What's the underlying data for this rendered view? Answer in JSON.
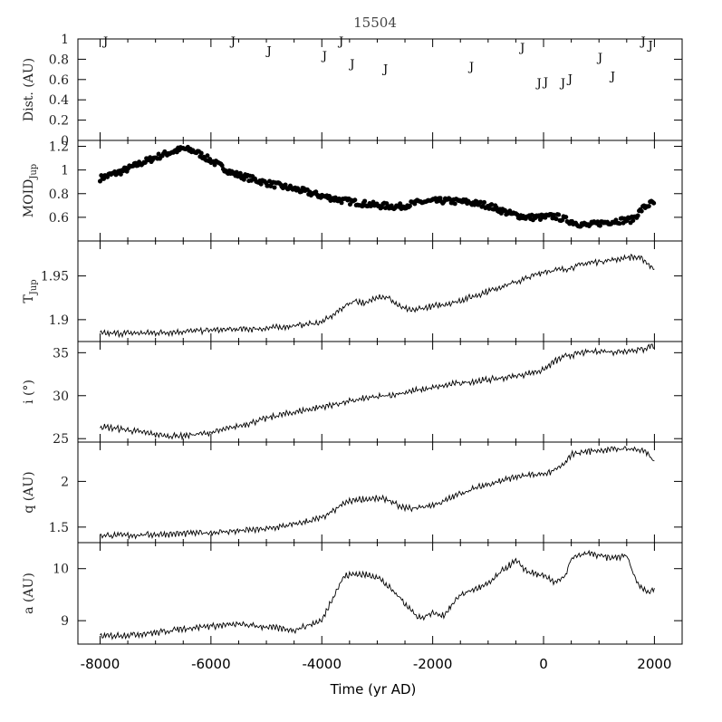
{
  "chart_data": {
    "title": "15504",
    "type": "multi-panel time series",
    "xlabel": "Time (yr AD)",
    "xlim": [
      -8400,
      2500
    ],
    "x_ticks": [
      -8000,
      -6000,
      -4000,
      -2000,
      0,
      2000
    ],
    "x_tick_labels": [
      "-8000",
      "-6000",
      "-4000",
      "-2000",
      "0",
      "2000"
    ],
    "panels": [
      {
        "key": "dist",
        "type": "scatter",
        "ylabel": "Dist. (AU)",
        "ylim": [
          0,
          1.0
        ],
        "y_ticks": [
          0,
          0.2,
          0.4,
          0.6,
          0.8,
          1
        ],
        "y_tick_labels": [
          "0",
          "0.2",
          "0.4",
          "0.6",
          "0.8",
          "1"
        ],
        "marker": "J",
        "points": [
          {
            "x": -7900,
            "y": 0.98
          },
          {
            "x": -5600,
            "y": 0.98
          },
          {
            "x": -4950,
            "y": 0.89
          },
          {
            "x": -3950,
            "y": 0.84
          },
          {
            "x": -3650,
            "y": 0.98
          },
          {
            "x": -3450,
            "y": 0.76
          },
          {
            "x": -2850,
            "y": 0.71
          },
          {
            "x": -1300,
            "y": 0.73
          },
          {
            "x": -380,
            "y": 0.92
          },
          {
            "x": -80,
            "y": 0.57
          },
          {
            "x": 40,
            "y": 0.58
          },
          {
            "x": 350,
            "y": 0.57
          },
          {
            "x": 480,
            "y": 0.61
          },
          {
            "x": 1020,
            "y": 0.82
          },
          {
            "x": 1250,
            "y": 0.64
          },
          {
            "x": 1800,
            "y": 0.98
          },
          {
            "x": 1930,
            "y": 0.94
          }
        ]
      },
      {
        "key": "moid",
        "type": "scatter",
        "ylabel": "MOID",
        "ylabel_sub": "Jup",
        "ylim": [
          0.4,
          1.25
        ],
        "y_ticks": [
          0.6,
          0.8,
          1,
          1.2
        ],
        "y_tick_labels": [
          "0.6",
          "0.8",
          "1",
          "1.2"
        ],
        "marker": "dot",
        "trend": {
          "x": [
            -8000,
            -7600,
            -7200,
            -6800,
            -6500,
            -6300,
            -6000,
            -5600,
            -5000,
            -4400,
            -4000,
            -3600,
            -3000,
            -2600,
            -2200,
            -1800,
            -1400,
            -1000,
            -600,
            -300,
            0,
            200,
            400,
            600,
            800,
            1000,
            1300,
            1600,
            1800,
            1950
          ],
          "y": [
            0.93,
            0.99,
            1.07,
            1.14,
            1.18,
            1.16,
            1.08,
            0.97,
            0.89,
            0.83,
            0.78,
            0.74,
            0.7,
            0.69,
            0.73,
            0.74,
            0.73,
            0.7,
            0.63,
            0.6,
            0.6,
            0.61,
            0.58,
            0.55,
            0.53,
            0.55,
            0.57,
            0.58,
            0.68,
            0.72
          ]
        }
      },
      {
        "key": "tjup",
        "type": "line",
        "ylabel": "T",
        "ylabel_sub": "Jup",
        "ylim": [
          1.875,
          1.99
        ],
        "y_ticks": [
          1.9,
          1.95
        ],
        "y_tick_labels": [
          "1.9",
          "1.95"
        ],
        "trend": {
          "x": [
            -8000,
            -7000,
            -6000,
            -5000,
            -4500,
            -4000,
            -3800,
            -3600,
            -3400,
            -3200,
            -3000,
            -2800,
            -2600,
            -2400,
            -2200,
            -2000,
            -1600,
            -1200,
            -800,
            -400,
            0,
            400,
            800,
            1200,
            1600,
            1800,
            2000
          ],
          "y": [
            1.884,
            1.885,
            1.888,
            1.89,
            1.893,
            1.897,
            1.905,
            1.915,
            1.922,
            1.918,
            1.927,
            1.925,
            1.915,
            1.91,
            1.913,
            1.915,
            1.92,
            1.928,
            1.937,
            1.945,
            1.955,
            1.958,
            1.965,
            1.968,
            1.972,
            1.969,
            1.957
          ]
        }
      },
      {
        "key": "inc",
        "type": "line",
        "ylabel": "i (°)",
        "ylim": [
          24.6,
          36.3
        ],
        "y_ticks": [
          25,
          30,
          35
        ],
        "y_tick_labels": [
          "25",
          "30",
          "35"
        ],
        "trend": {
          "x": [
            -8000,
            -7600,
            -7200,
            -6800,
            -6400,
            -6000,
            -5600,
            -5200,
            -4800,
            -4400,
            -4000,
            -3600,
            -3200,
            -2800,
            -2400,
            -2000,
            -1600,
            -1200,
            -800,
            -400,
            0,
            200,
            400,
            700,
            1000,
            1300,
            1600,
            1800,
            1950,
            2000
          ],
          "y": [
            26.4,
            26.1,
            25.7,
            25.3,
            25.4,
            25.7,
            26.3,
            27.0,
            27.7,
            28.2,
            28.7,
            29.2,
            29.7,
            30.0,
            30.5,
            30.9,
            31.4,
            31.7,
            32.0,
            32.4,
            33.0,
            34.0,
            34.6,
            35.0,
            35.2,
            35.1,
            35.3,
            35.4,
            35.9,
            35.6
          ]
        }
      },
      {
        "key": "q",
        "type": "line",
        "ylabel": "q (AU)",
        "ylim": [
          1.33,
          2.43
        ],
        "y_ticks": [
          1.5,
          2
        ],
        "y_tick_labels": [
          "1.5",
          "2"
        ],
        "trend": {
          "x": [
            -8000,
            -7500,
            -7000,
            -6000,
            -5000,
            -4500,
            -4000,
            -3800,
            -3600,
            -3400,
            -3000,
            -2800,
            -2600,
            -2400,
            -2200,
            -2000,
            -1800,
            -1500,
            -1000,
            -500,
            0,
            200,
            400,
            500,
            800,
            1200,
            1500,
            1800,
            2000
          ],
          "y": [
            1.41,
            1.41,
            1.42,
            1.44,
            1.48,
            1.53,
            1.6,
            1.67,
            1.76,
            1.8,
            1.81,
            1.8,
            1.72,
            1.7,
            1.72,
            1.74,
            1.78,
            1.87,
            1.97,
            2.05,
            2.08,
            2.12,
            2.2,
            2.3,
            2.33,
            2.35,
            2.36,
            2.34,
            2.22
          ]
        }
      },
      {
        "key": "a",
        "type": "line",
        "ylabel": "a (AU)",
        "ylim": [
          8.55,
          10.5
        ],
        "y_ticks": [
          9,
          10
        ],
        "y_tick_labels": [
          "9",
          "10"
        ],
        "trend": {
          "x": [
            -8000,
            -7600,
            -7000,
            -6500,
            -6000,
            -5500,
            -5000,
            -4500,
            -4000,
            -3800,
            -3600,
            -3400,
            -3000,
            -2600,
            -2300,
            -2200,
            -2000,
            -1800,
            -1500,
            -1000,
            -700,
            -500,
            -300,
            0,
            200,
            400,
            500,
            800,
            1200,
            1500,
            1700,
            1900,
            2000
          ],
          "y": [
            8.7,
            8.72,
            8.77,
            8.85,
            8.9,
            8.93,
            8.88,
            8.82,
            9.0,
            9.45,
            9.85,
            9.9,
            9.85,
            9.45,
            9.1,
            9.05,
            9.15,
            9.1,
            9.5,
            9.7,
            10.0,
            10.15,
            9.95,
            9.85,
            9.75,
            9.85,
            10.2,
            10.3,
            10.2,
            10.25,
            9.7,
            9.55,
            9.6
          ]
        }
      }
    ]
  }
}
